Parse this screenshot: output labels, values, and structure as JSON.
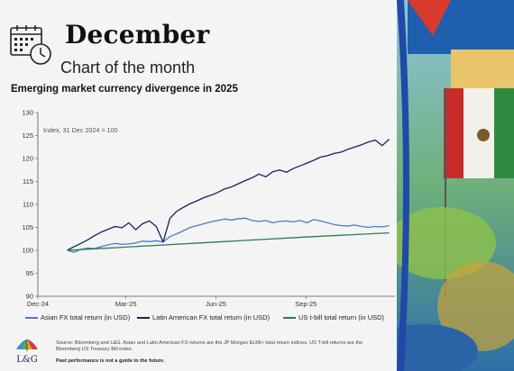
{
  "header": {
    "title": "December",
    "subtitle": "Chart of the month"
  },
  "chart_title": "Emerging market currency divergence in 2025",
  "chart_data": {
    "type": "line",
    "title": "Emerging market currency divergence in 2025",
    "annotation": "Index, 31 Dec 2024 = 100",
    "ylim": [
      90,
      130
    ],
    "yticks": [
      90,
      95,
      100,
      105,
      110,
      115,
      120,
      125,
      130
    ],
    "xlim": [
      "2024-12-01",
      "2025-12-01"
    ],
    "xticks": [
      {
        "label": "Dec-24",
        "date": "2024-12-01"
      },
      {
        "label": "Mar-25",
        "date": "2025-03-01"
      },
      {
        "label": "Jun-25",
        "date": "2025-06-01"
      },
      {
        "label": "Sep-25",
        "date": "2025-09-01"
      }
    ],
    "grid": false,
    "legend_position": "bottom",
    "series": [
      {
        "name": "Asian FX total return (in USD)",
        "color": "#4a7cc4",
        "points": [
          [
            "2024-12-31",
            100
          ],
          [
            "2025-01-07",
            99.6
          ],
          [
            "2025-01-14",
            100.2
          ],
          [
            "2025-01-21",
            100.5
          ],
          [
            "2025-01-28",
            100.4
          ],
          [
            "2025-02-04",
            100.8
          ],
          [
            "2025-02-11",
            101.2
          ],
          [
            "2025-02-18",
            101.5
          ],
          [
            "2025-02-25",
            101.3
          ],
          [
            "2025-03-04",
            101.4
          ],
          [
            "2025-03-11",
            101.6
          ],
          [
            "2025-03-18",
            102.0
          ],
          [
            "2025-03-25",
            101.9
          ],
          [
            "2025-04-01",
            102.1
          ],
          [
            "2025-04-08",
            101.8
          ],
          [
            "2025-04-15",
            103.0
          ],
          [
            "2025-04-22",
            103.6
          ],
          [
            "2025-04-29",
            104.3
          ],
          [
            "2025-05-06",
            105.0
          ],
          [
            "2025-05-13",
            105.4
          ],
          [
            "2025-05-20",
            105.8
          ],
          [
            "2025-05-27",
            106.2
          ],
          [
            "2025-06-03",
            106.5
          ],
          [
            "2025-06-10",
            106.8
          ],
          [
            "2025-06-17",
            106.6
          ],
          [
            "2025-06-24",
            106.9
          ],
          [
            "2025-07-01",
            107.0
          ],
          [
            "2025-07-08",
            106.5
          ],
          [
            "2025-07-15",
            106.3
          ],
          [
            "2025-07-22",
            106.5
          ],
          [
            "2025-07-29",
            106.0
          ],
          [
            "2025-08-05",
            106.3
          ],
          [
            "2025-08-12",
            106.4
          ],
          [
            "2025-08-19",
            106.2
          ],
          [
            "2025-08-26",
            106.5
          ],
          [
            "2025-09-02",
            106.0
          ],
          [
            "2025-09-09",
            106.7
          ],
          [
            "2025-09-16",
            106.4
          ],
          [
            "2025-09-23",
            106.0
          ],
          [
            "2025-09-30",
            105.6
          ],
          [
            "2025-10-07",
            105.4
          ],
          [
            "2025-10-14",
            105.3
          ],
          [
            "2025-10-21",
            105.5
          ],
          [
            "2025-10-28",
            105.2
          ],
          [
            "2025-11-04",
            105.0
          ],
          [
            "2025-11-11",
            105.2
          ],
          [
            "2025-11-18",
            105.1
          ],
          [
            "2025-11-25",
            105.4
          ]
        ]
      },
      {
        "name": "Latin American FX total return (in USD)",
        "color": "#1b1f5e",
        "points": [
          [
            "2024-12-31",
            100
          ],
          [
            "2025-01-07",
            100.8
          ],
          [
            "2025-01-14",
            101.5
          ],
          [
            "2025-01-21",
            102.3
          ],
          [
            "2025-01-28",
            103.2
          ],
          [
            "2025-02-04",
            104.0
          ],
          [
            "2025-02-11",
            104.6
          ],
          [
            "2025-02-18",
            105.2
          ],
          [
            "2025-02-25",
            104.9
          ],
          [
            "2025-03-04",
            106.0
          ],
          [
            "2025-03-11",
            104.5
          ],
          [
            "2025-03-18",
            105.8
          ],
          [
            "2025-03-25",
            106.4
          ],
          [
            "2025-04-01",
            105.2
          ],
          [
            "2025-04-08",
            101.8
          ],
          [
            "2025-04-15",
            107.0
          ],
          [
            "2025-04-22",
            108.5
          ],
          [
            "2025-04-29",
            109.4
          ],
          [
            "2025-05-06",
            110.2
          ],
          [
            "2025-05-13",
            110.8
          ],
          [
            "2025-05-20",
            111.5
          ],
          [
            "2025-05-27",
            112.0
          ],
          [
            "2025-06-03",
            112.6
          ],
          [
            "2025-06-10",
            113.4
          ],
          [
            "2025-06-17",
            113.8
          ],
          [
            "2025-06-24",
            114.5
          ],
          [
            "2025-07-01",
            115.2
          ],
          [
            "2025-07-08",
            115.8
          ],
          [
            "2025-07-15",
            116.6
          ],
          [
            "2025-07-22",
            116.0
          ],
          [
            "2025-07-29",
            117.1
          ],
          [
            "2025-08-05",
            117.5
          ],
          [
            "2025-08-12",
            117.0
          ],
          [
            "2025-08-19",
            117.8
          ],
          [
            "2025-08-26",
            118.4
          ],
          [
            "2025-09-02",
            119.0
          ],
          [
            "2025-09-09",
            119.6
          ],
          [
            "2025-09-16",
            120.3
          ],
          [
            "2025-09-23",
            120.6
          ],
          [
            "2025-09-30",
            121.1
          ],
          [
            "2025-10-07",
            121.4
          ],
          [
            "2025-10-14",
            122.0
          ],
          [
            "2025-10-21",
            122.5
          ],
          [
            "2025-10-28",
            123.0
          ],
          [
            "2025-11-04",
            123.6
          ],
          [
            "2025-11-11",
            124.0
          ],
          [
            "2025-11-18",
            122.8
          ],
          [
            "2025-11-25",
            124.2
          ]
        ]
      },
      {
        "name": "US t-bill total return (in USD)",
        "color": "#2e7d4f",
        "points": [
          [
            "2024-12-31",
            100
          ],
          [
            "2025-03-01",
            100.7
          ],
          [
            "2025-06-01",
            101.8
          ],
          [
            "2025-09-01",
            102.9
          ],
          [
            "2025-11-25",
            103.8
          ]
        ]
      }
    ]
  },
  "footer": {
    "logo_text": "L&G",
    "source": "Source: Bloomberg and L&G. Asian and Latin American FX returns are the JP Morgan ELMI+ total return indices, US T-bill returns are the Bloomberg US Treasury Bill index.",
    "past_performance": "Past performance is not a guide to the future."
  },
  "colors": {
    "card_bg": "#f4f4f4",
    "accent_blue": "#1f4aa8",
    "text_dark": "#111111"
  },
  "icons": {
    "header": "calendar-clock-icon",
    "logo": "umbrella-logo"
  }
}
